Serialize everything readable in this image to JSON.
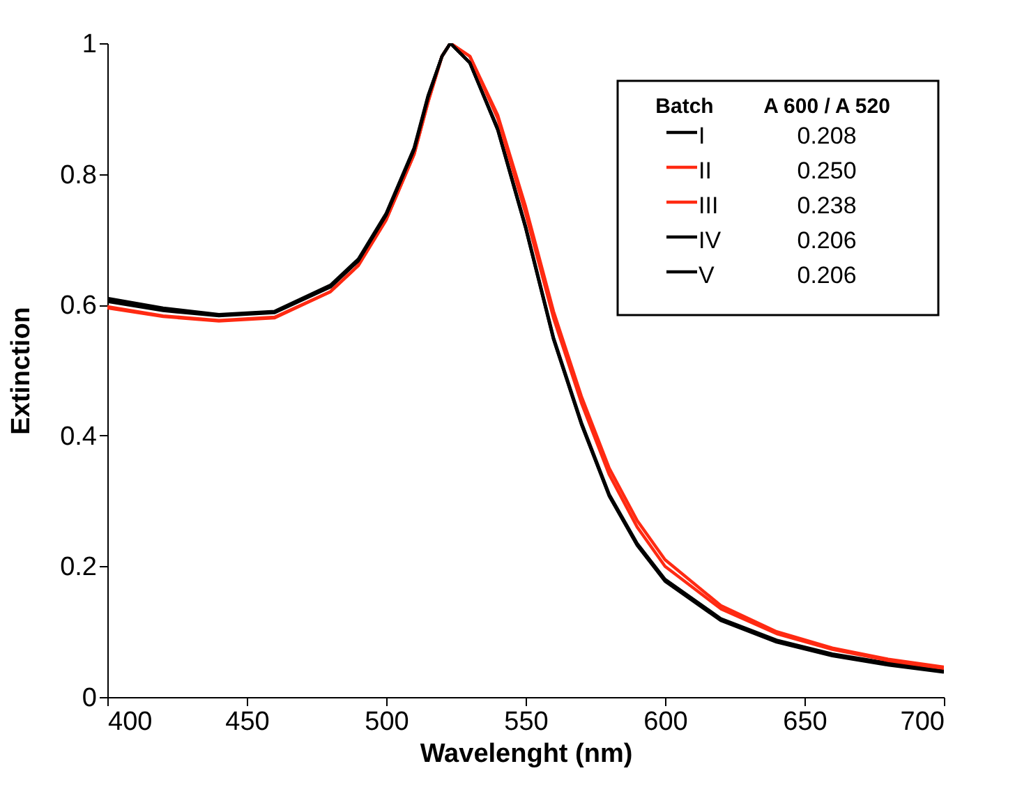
{
  "chart_data": {
    "type": "line",
    "xlabel": "Wavelenght (nm)",
    "ylabel": "Extinction",
    "xlim": [
      400,
      700
    ],
    "xticks": [
      400,
      450,
      500,
      550,
      600,
      650,
      700
    ],
    "ylim": [
      0,
      1
    ],
    "yticks": [
      0,
      0.2,
      0.4,
      0.6,
      0.8,
      1
    ],
    "grid": false,
    "legend": "top right",
    "legend_title": "Batch",
    "line_style": "solid",
    "marker": "none",
    "annotations": [
      "A 600 / A 520",
      "0.208",
      "0.250",
      "0.238",
      "0.206",
      "0.206"
    ],
    "x": [
      400,
      420,
      440,
      460,
      480,
      490,
      500,
      510,
      515,
      520,
      523,
      530,
      540,
      550,
      560,
      570,
      580,
      590,
      600,
      620,
      640,
      660,
      680,
      700
    ],
    "series": [
      {
        "name": "I",
        "color": "#000000",
        "values": [
          0.61,
          0.595,
          0.585,
          0.59,
          0.63,
          0.67,
          0.74,
          0.84,
          0.92,
          0.98,
          1.0,
          0.97,
          0.87,
          0.72,
          0.55,
          0.42,
          0.31,
          0.235,
          0.18,
          0.12,
          0.087,
          0.066,
          0.052,
          0.04
        ]
      },
      {
        "name": "II",
        "color": "#ff2a12",
        "values": [
          0.595,
          0.582,
          0.575,
          0.58,
          0.62,
          0.66,
          0.73,
          0.83,
          0.91,
          0.98,
          1.0,
          0.98,
          0.89,
          0.75,
          0.59,
          0.46,
          0.35,
          0.27,
          0.21,
          0.14,
          0.1,
          0.075,
          0.058,
          0.046
        ]
      },
      {
        "name": "III",
        "color": "#ff2a12",
        "values": [
          0.597,
          0.583,
          0.576,
          0.581,
          0.62,
          0.66,
          0.73,
          0.83,
          0.91,
          0.98,
          1.0,
          0.98,
          0.885,
          0.74,
          0.58,
          0.45,
          0.34,
          0.26,
          0.2,
          0.135,
          0.097,
          0.073,
          0.056,
          0.044
        ]
      },
      {
        "name": "IV",
        "color": "#000000",
        "values": [
          0.607,
          0.593,
          0.584,
          0.589,
          0.628,
          0.668,
          0.738,
          0.838,
          0.918,
          0.98,
          1.0,
          0.97,
          0.868,
          0.718,
          0.548,
          0.418,
          0.308,
          0.233,
          0.178,
          0.118,
          0.085,
          0.064,
          0.05,
          0.039
        ]
      },
      {
        "name": "V",
        "color": "#000000",
        "values": [
          0.605,
          0.591,
          0.583,
          0.588,
          0.627,
          0.667,
          0.737,
          0.837,
          0.917,
          0.98,
          1.0,
          0.97,
          0.867,
          0.717,
          0.547,
          0.417,
          0.307,
          0.232,
          0.177,
          0.117,
          0.084,
          0.063,
          0.049,
          0.038
        ]
      }
    ]
  }
}
